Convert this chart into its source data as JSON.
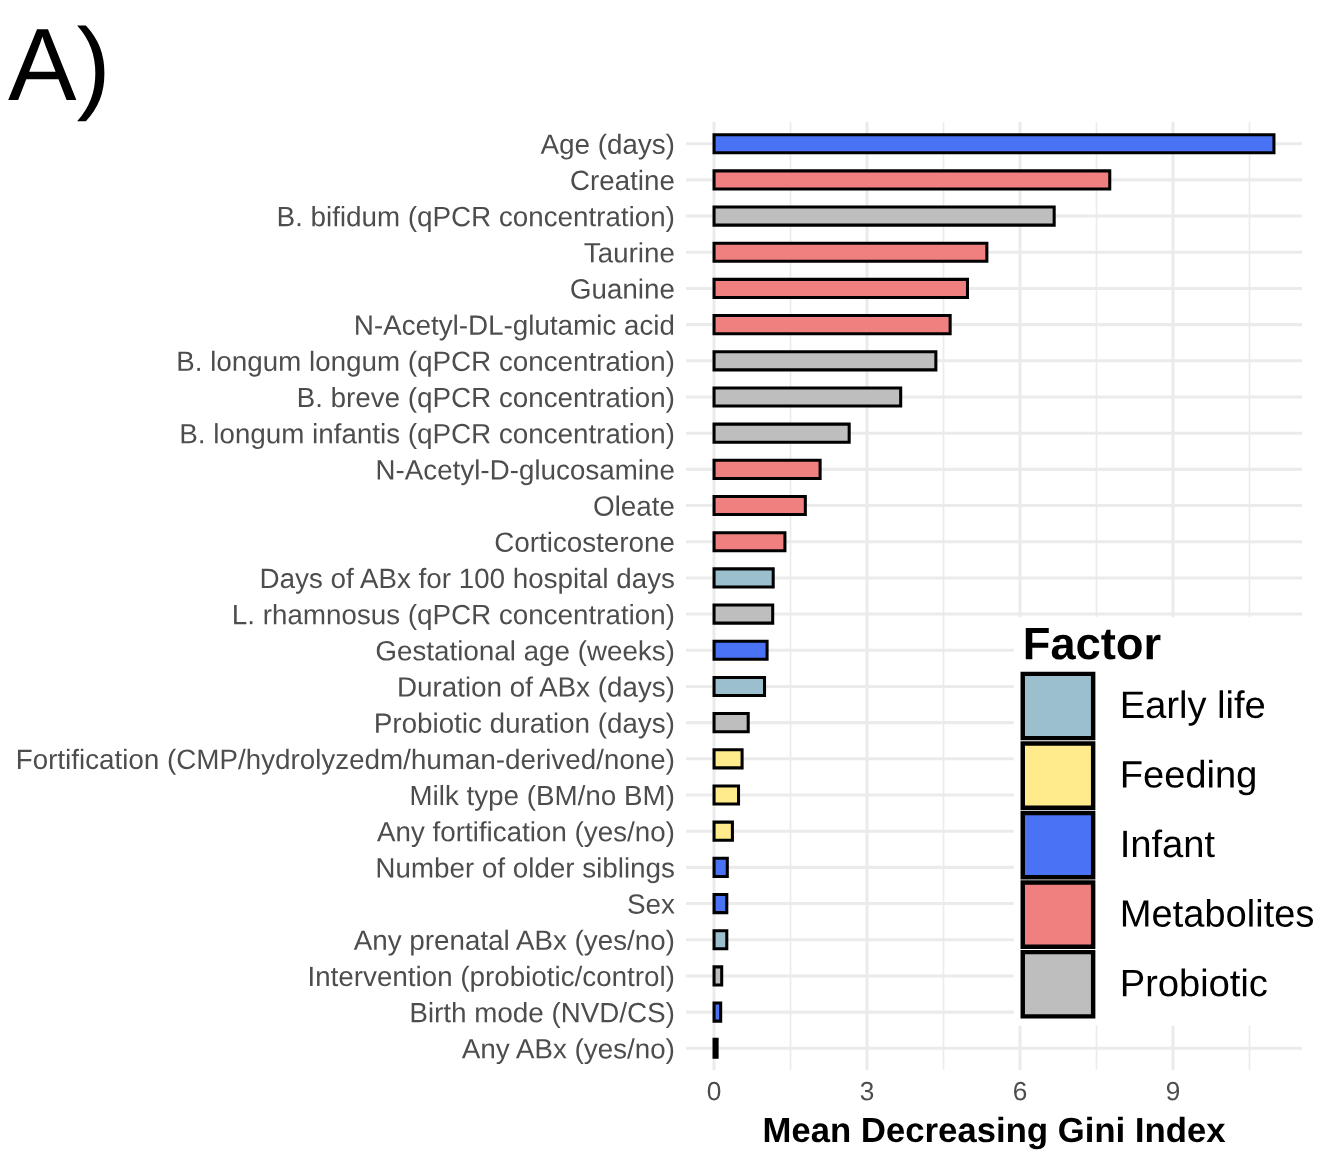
{
  "chart_data": {
    "type": "bar",
    "orientation": "horizontal",
    "categories": [
      "Age (days)",
      "Creatine",
      "B. bifidum (qPCR concentration)",
      "Taurine",
      "Guanine",
      "N-Acetyl-DL-glutamic acid",
      "B. longum longum (qPCR concentration)",
      "B. breve (qPCR concentration)",
      "B. longum infantis (qPCR concentration)",
      "N-Acetyl-D-glucosamine",
      "Oleate",
      "Corticosterone",
      "Days of ABx for 100 hospital days",
      "L. rhamnosus (qPCR concentration)",
      "Gestational age (weeks)",
      "Duration of ABx (days)",
      "Probiotic duration (days)",
      "Fortification (CMP/hydrolyzedm/human-derived/none)",
      "Milk type (BM/no BM)",
      "Any fortification (yes/no)",
      "Number of older siblings",
      "Sex",
      "Any prenatal ABx (yes/no)",
      "Intervention (probiotic/control)",
      "Birth mode (NVD/CS)",
      "Any ABx (yes/no)"
    ],
    "series": [
      {
        "name": "Early life",
        "color": "#9bbfcc",
        "values": [
          null,
          null,
          null,
          null,
          null,
          null,
          null,
          null,
          null,
          null,
          null,
          null,
          1.16,
          null,
          null,
          0.99,
          null,
          null,
          null,
          null,
          null,
          null,
          0.25,
          null,
          null,
          0.06
        ]
      },
      {
        "name": "Feeding",
        "color": "#ffeb8b",
        "values": [
          null,
          null,
          null,
          null,
          null,
          null,
          null,
          null,
          null,
          null,
          null,
          null,
          null,
          null,
          null,
          null,
          null,
          0.55,
          0.48,
          0.36,
          null,
          null,
          null,
          null,
          null,
          null
        ]
      },
      {
        "name": "Infant",
        "color": "#4a72f5",
        "values": [
          10.98,
          null,
          null,
          null,
          null,
          null,
          null,
          null,
          null,
          null,
          null,
          null,
          null,
          null,
          1.04,
          null,
          null,
          null,
          null,
          null,
          0.26,
          0.25,
          null,
          null,
          0.13,
          null
        ]
      },
      {
        "name": "Metabolites",
        "color": "#f08080",
        "values": [
          null,
          7.76,
          null,
          5.35,
          4.97,
          4.63,
          null,
          null,
          null,
          2.08,
          1.79,
          1.39,
          null,
          null,
          null,
          null,
          null,
          null,
          null,
          null,
          null,
          null,
          null,
          null,
          null,
          null
        ]
      },
      {
        "name": "Probiotic",
        "color": "#bebebe",
        "values": [
          null,
          null,
          6.67,
          null,
          null,
          null,
          4.35,
          3.66,
          2.65,
          null,
          null,
          null,
          null,
          1.15,
          null,
          null,
          0.67,
          null,
          null,
          null,
          null,
          null,
          null,
          0.15,
          null,
          null
        ]
      }
    ],
    "xlabel": "Mean Decreasing Gini Index",
    "legend_title": "Factor",
    "legend": "bottom right",
    "grid": true,
    "xlim": [
      -0.55,
      11.53
    ],
    "xticks": [
      0,
      {
        "value": 1.5,
        "label": null
      },
      3,
      {
        "value": 4.5,
        "label": null
      },
      6,
      {
        "value": 7.5,
        "label": null
      },
      9,
      {
        "value": 10.5,
        "label": null
      }
    ],
    "annotations": [
      "A)"
    ]
  }
}
